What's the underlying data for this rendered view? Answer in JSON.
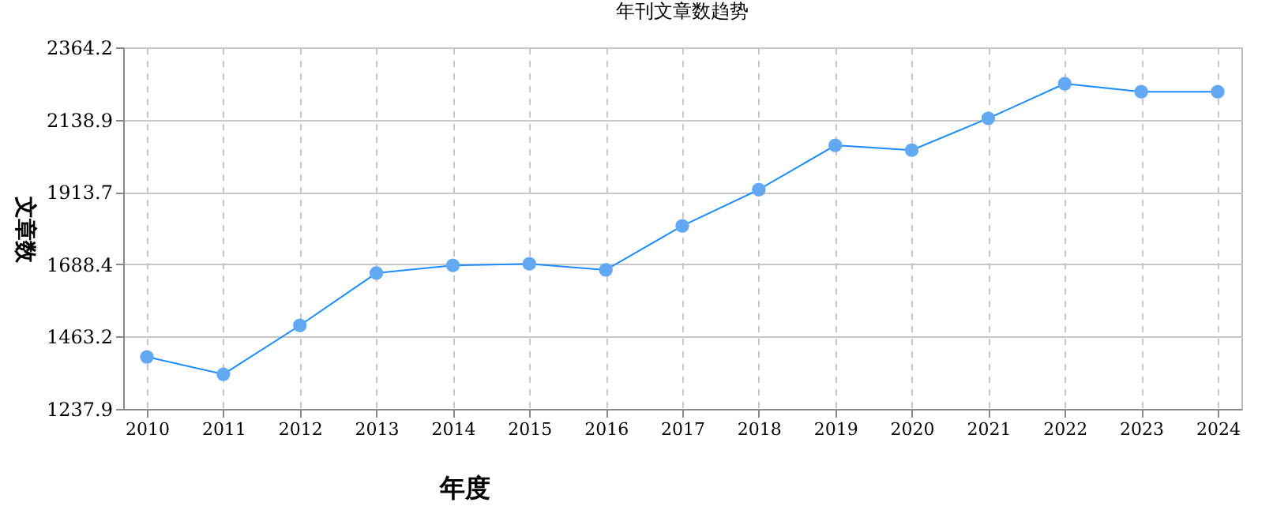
{
  "chart_data": {
    "type": "line",
    "title": "年刊文章数趋势",
    "xlabel": "年度",
    "ylabel": "文章数",
    "categories": [
      "2010",
      "2011",
      "2012",
      "2013",
      "2014",
      "2015",
      "2016",
      "2017",
      "2018",
      "2019",
      "2020",
      "2021",
      "2022",
      "2023",
      "2024"
    ],
    "series": [
      {
        "color": "#1a8cff",
        "values": [
          1400,
          1346,
          1498,
          1661,
          1685,
          1690,
          1671,
          1808,
          1921,
          2059,
          2044,
          2143,
          2251,
          2226,
          2226
        ]
      }
    ],
    "ylim": [
      1237.9,
      2364.2
    ],
    "yticks": [
      1237.9,
      1463.2,
      1688.4,
      1913.7,
      2138.9,
      2364.2
    ],
    "grid": true,
    "marker": "circle",
    "line_style": "solid",
    "legend": false
  }
}
